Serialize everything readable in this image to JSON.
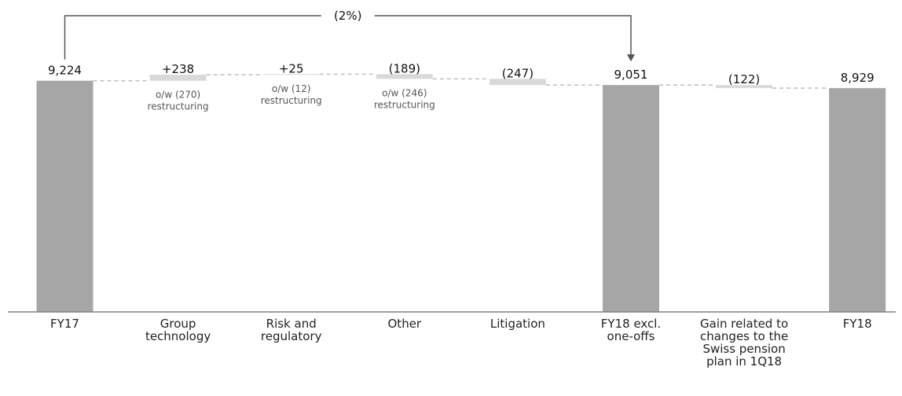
{
  "chart_data": {
    "type": "waterfall",
    "title": "",
    "xlabel": "",
    "ylabel": "",
    "ylim": [
      0,
      10000
    ],
    "grid": false,
    "legend": "none",
    "colors": {
      "total": "#a6a6a6",
      "delta": "#d9d9d9",
      "connector": "#bfbfbf",
      "axis": "#808080",
      "bracket": "#555555"
    },
    "bars": [
      {
        "category": "FY17",
        "kind": "total",
        "start": 0,
        "end": 9224,
        "label": "9,224",
        "note": ""
      },
      {
        "category": "Group technology",
        "kind": "delta",
        "start": 9224,
        "end": 9462,
        "label": "+238",
        "note": "o/w (270) restructuring"
      },
      {
        "category": "Risk and regulatory",
        "kind": "delta",
        "start": 9462,
        "end": 9487,
        "label": "+25",
        "note": "o/w (12) restructuring"
      },
      {
        "category": "Other",
        "kind": "delta",
        "start": 9487,
        "end": 9298,
        "label": "(189)",
        "note": "o/w (246) restructuring"
      },
      {
        "category": "Litigation",
        "kind": "delta",
        "start": 9298,
        "end": 9051,
        "label": "(247)",
        "note": ""
      },
      {
        "category": "FY18 excl. one-offs",
        "kind": "total",
        "start": 0,
        "end": 9051,
        "label": "9,051",
        "note": ""
      },
      {
        "category": "Gain related to changes to the Swiss pension plan in 1Q18",
        "kind": "delta",
        "start": 9051,
        "end": 8929,
        "label": "(122)",
        "note": ""
      },
      {
        "category": "FY18",
        "kind": "total",
        "start": 0,
        "end": 8929,
        "label": "8,929",
        "note": ""
      }
    ],
    "annotations": [
      {
        "type": "bracket",
        "from": "FY17",
        "to": "FY18 excl. one-offs",
        "label": "(2%)"
      }
    ]
  }
}
